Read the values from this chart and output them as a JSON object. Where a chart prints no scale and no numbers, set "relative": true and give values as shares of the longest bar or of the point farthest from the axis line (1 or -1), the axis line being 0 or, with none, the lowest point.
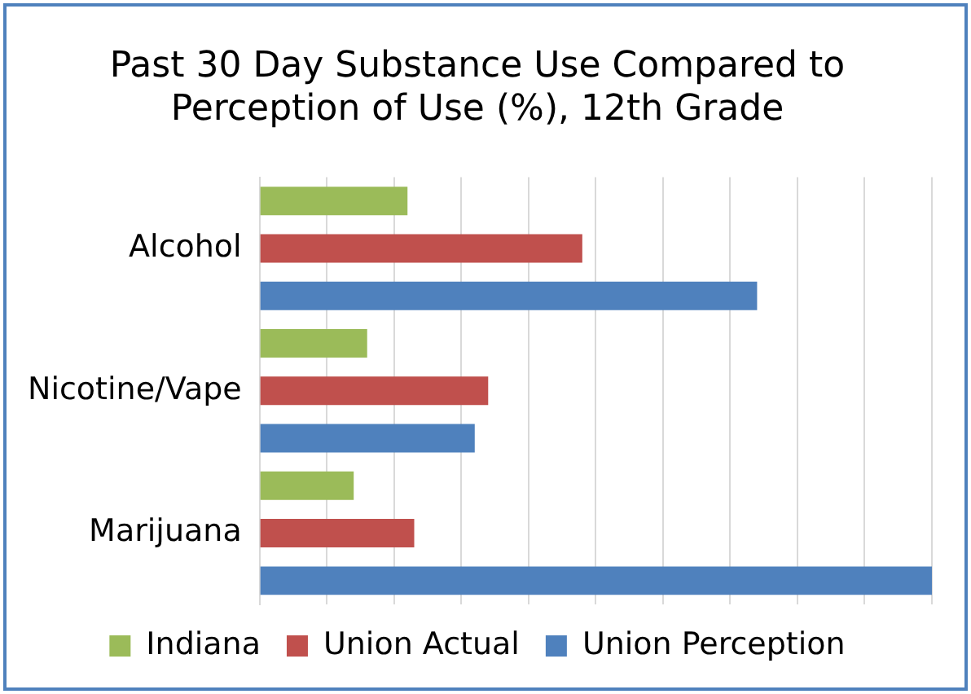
{
  "chart_data": {
    "type": "bar",
    "orientation": "horizontal",
    "relative": true,
    "title": "Past 30 Day Substance Use Compared to Perception of Use (%), 12th Grade",
    "categories": [
      "Alcohol",
      "Nicotine/Vape",
      "Marijuana"
    ],
    "series": [
      {
        "name": "Indiana",
        "color": "#9bbb59",
        "values": [
          0.22,
          0.16,
          0.14
        ]
      },
      {
        "name": "Union Actual",
        "color": "#c0504d",
        "values": [
          0.48,
          0.34,
          0.23
        ]
      },
      {
        "name": "Union Perception",
        "color": "#4f81bd",
        "values": [
          0.74,
          0.32,
          1
        ]
      }
    ],
    "grid": "x",
    "legend": "bottom"
  }
}
